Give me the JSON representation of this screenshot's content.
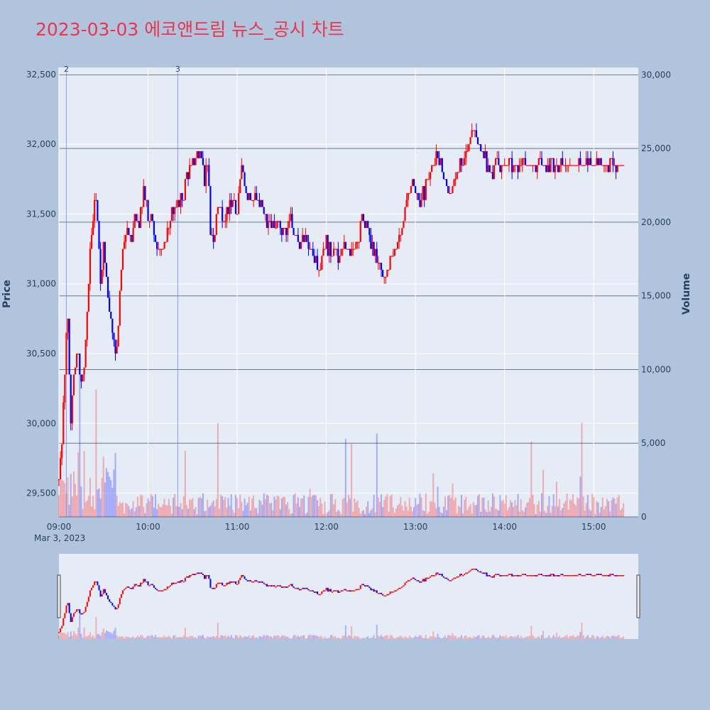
{
  "chart_data": {
    "type": "candlestick",
    "title": "2023-03-03 에코앤드림 뉴스_공시 차트",
    "date_label": "Mar 3, 2023",
    "y_label": "Price",
    "y2_label": "Volume",
    "y_ticks": [
      "29,500",
      "30,000",
      "30,500",
      "31,000",
      "31,500",
      "32,000",
      "32,500"
    ],
    "y_tick_values": [
      29500,
      30000,
      30500,
      31000,
      31500,
      32000,
      32500
    ],
    "y_range": [
      29330,
      32550
    ],
    "y2_ticks": [
      "0",
      "5,000",
      "10,000",
      "15,000",
      "20,000",
      "25,000",
      "30,000"
    ],
    "y2_tick_values": [
      0,
      5000,
      10000,
      15000,
      20000,
      25000,
      30000
    ],
    "y2_range": [
      0,
      30500
    ],
    "x_ticks": [
      "09:00",
      "10:00",
      "11:00",
      "12:00",
      "13:00",
      "14:00",
      "15:00"
    ],
    "x_tick_values": [
      "09:00",
      "10:00",
      "11:00",
      "12:00",
      "13:00",
      "14:00",
      "15:00"
    ],
    "x_range": [
      "09:00",
      "15:30"
    ],
    "markers": [
      {
        "label": "2",
        "time": "09:05"
      },
      {
        "label": "3",
        "time": "10:20"
      }
    ],
    "up_color": "#ff0000",
    "down_color": "#0000ff",
    "price_path": [
      [
        "09:00",
        29600
      ],
      [
        "09:02",
        29900
      ],
      [
        "09:04",
        30400
      ],
      [
        "09:06",
        30750
      ],
      [
        "09:08",
        30050
      ],
      [
        "09:10",
        30300
      ],
      [
        "09:12",
        30500
      ],
      [
        "09:15",
        30300
      ],
      [
        "09:17",
        30400
      ],
      [
        "09:19",
        30800
      ],
      [
        "09:21",
        31200
      ],
      [
        "09:24",
        31600
      ],
      [
        "09:26",
        31450
      ],
      [
        "09:28",
        31000
      ],
      [
        "09:30",
        31300
      ],
      [
        "09:33",
        30900
      ],
      [
        "09:36",
        30650
      ],
      [
        "09:39",
        30500
      ],
      [
        "09:41",
        30900
      ],
      [
        "09:43",
        31200
      ],
      [
        "09:46",
        31400
      ],
      [
        "09:49",
        31300
      ],
      [
        "09:51",
        31500
      ],
      [
        "09:54",
        31400
      ],
      [
        "09:57",
        31650
      ],
      [
        "10:00",
        31500
      ],
      [
        "10:03",
        31400
      ],
      [
        "10:06",
        31300
      ],
      [
        "10:09",
        31200
      ],
      [
        "10:12",
        31350
      ],
      [
        "10:15",
        31450
      ],
      [
        "10:18",
        31550
      ],
      [
        "10:21",
        31600
      ],
      [
        "10:24",
        31650
      ],
      [
        "10:27",
        31800
      ],
      [
        "10:30",
        31850
      ],
      [
        "10:33",
        31900
      ],
      [
        "10:36",
        31950
      ],
      [
        "10:38",
        31700
      ],
      [
        "10:40",
        31850
      ],
      [
        "10:42",
        31400
      ],
      [
        "10:44",
        31300
      ],
      [
        "10:46",
        31500
      ],
      [
        "10:48",
        31600
      ],
      [
        "10:51",
        31450
      ],
      [
        "10:54",
        31500
      ],
      [
        "10:57",
        31600
      ],
      [
        "11:00",
        31550
      ],
      [
        "11:03",
        31850
      ],
      [
        "11:06",
        31700
      ],
      [
        "11:09",
        31600
      ],
      [
        "11:12",
        31650
      ],
      [
        "11:15",
        31550
      ],
      [
        "11:18",
        31500
      ],
      [
        "11:21",
        31450
      ],
      [
        "11:24",
        31400
      ],
      [
        "11:27",
        31450
      ],
      [
        "11:30",
        31350
      ],
      [
        "11:33",
        31400
      ],
      [
        "11:36",
        31450
      ],
      [
        "11:39",
        31350
      ],
      [
        "11:42",
        31300
      ],
      [
        "11:45",
        31350
      ],
      [
        "11:48",
        31300
      ],
      [
        "11:51",
        31200
      ],
      [
        "11:54",
        31100
      ],
      [
        "11:57",
        31200
      ],
      [
        "12:00",
        31300
      ],
      [
        "12:03",
        31200
      ],
      [
        "12:06",
        31250
      ],
      [
        "12:09",
        31200
      ],
      [
        "12:12",
        31300
      ],
      [
        "12:15",
        31200
      ],
      [
        "12:18",
        31250
      ],
      [
        "12:21",
        31300
      ],
      [
        "12:24",
        31500
      ],
      [
        "12:27",
        31400
      ],
      [
        "12:30",
        31250
      ],
      [
        "12:33",
        31200
      ],
      [
        "12:36",
        31100
      ],
      [
        "12:39",
        31050
      ],
      [
        "12:42",
        31100
      ],
      [
        "12:45",
        31200
      ],
      [
        "12:48",
        31300
      ],
      [
        "12:51",
        31400
      ],
      [
        "12:54",
        31600
      ],
      [
        "12:57",
        31700
      ],
      [
        "13:00",
        31650
      ],
      [
        "13:03",
        31600
      ],
      [
        "13:06",
        31650
      ],
      [
        "13:09",
        31750
      ],
      [
        "13:12",
        31850
      ],
      [
        "13:15",
        31900
      ],
      [
        "13:18",
        31800
      ],
      [
        "13:21",
        31700
      ],
      [
        "13:24",
        31650
      ],
      [
        "13:27",
        31750
      ],
      [
        "13:30",
        31850
      ],
      [
        "13:33",
        31900
      ],
      [
        "13:36",
        32000
      ],
      [
        "13:39",
        32100
      ],
      [
        "13:42",
        32000
      ],
      [
        "13:45",
        31950
      ],
      [
        "13:48",
        31850
      ],
      [
        "13:51",
        31800
      ],
      [
        "13:54",
        31850
      ]
    ],
    "volume_bars_note": "Volume bars are drawn at the bottom of the price pane on the secondary axis"
  }
}
